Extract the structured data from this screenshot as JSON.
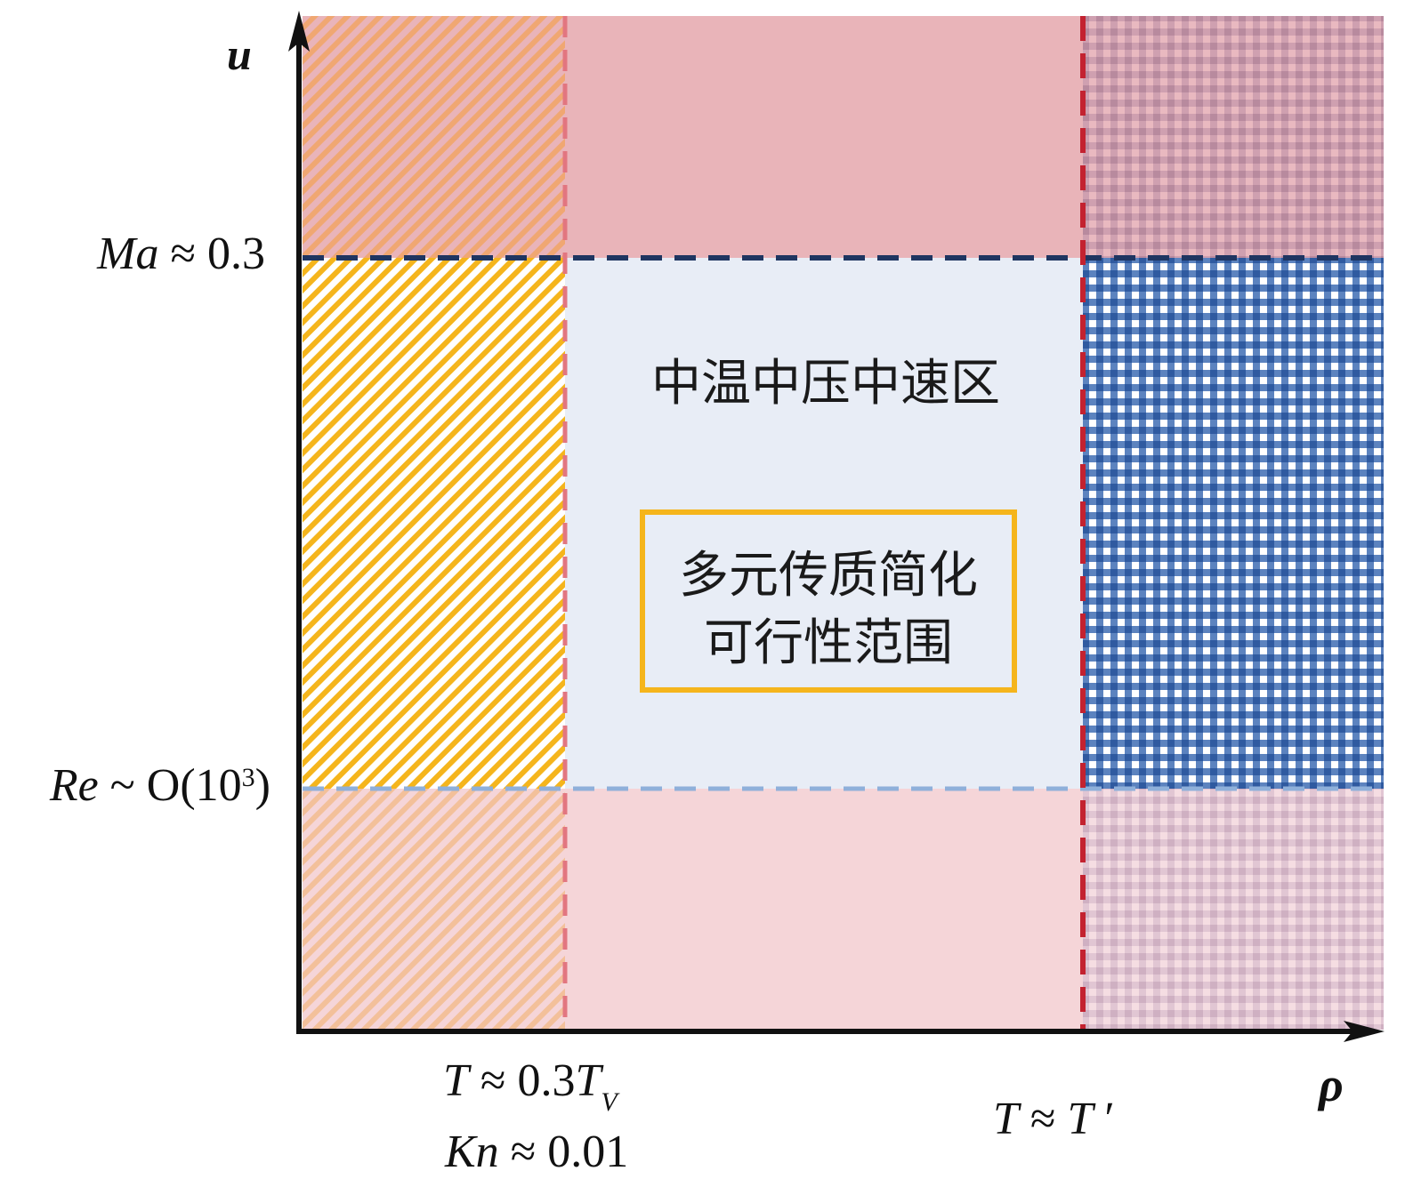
{
  "axes": {
    "x_label": "ρ",
    "y_label": "u"
  },
  "y_thresholds": {
    "upper": {
      "var": "Ma",
      "rel": " ≈ 0.3"
    },
    "lower": {
      "var": "Re",
      "rel": " ~ O(10",
      "sup": "3",
      "close": ")"
    }
  },
  "x_thresholds": {
    "left": {
      "line1": {
        "var": "T",
        "rel": " ≈ 0.3",
        "var2": "T",
        "sub": "V"
      },
      "line2": {
        "var": "Kn",
        "rel": " ≈ 0.01"
      }
    },
    "right": {
      "var": "T",
      "rel": " ≈ ",
      "var2": "T",
      "prime": " ′"
    }
  },
  "center_region": {
    "title": "中温中压中速区",
    "box_line1": "多元传质简化",
    "box_line2": "可行性范围"
  },
  "colors": {
    "pink_top": "#e9b4b9",
    "pink_bottom": "#f5d5d8",
    "light_blue": "#e8edf6",
    "yellow": "#f5b51c",
    "orange_hatch": "#f0a772",
    "blue_check": "#3f6db4",
    "red_dash": "#c32230",
    "pink_dash": "#e27680",
    "navy_dash": "#1f3561",
    "lightblue_dash": "#8fb0da",
    "box_border": "#f5b51c"
  }
}
